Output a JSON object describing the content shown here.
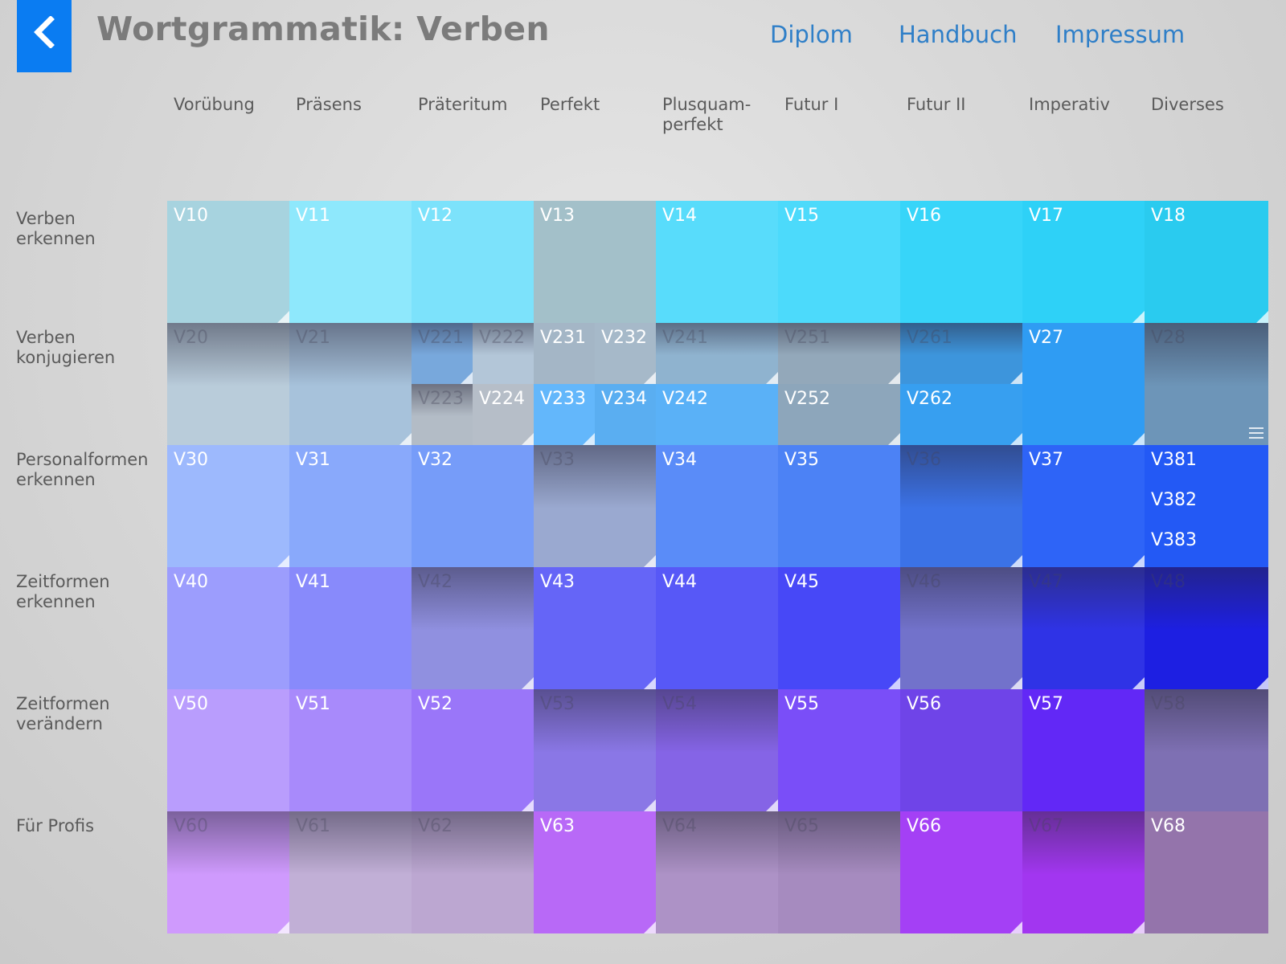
{
  "header": {
    "title": "Wortgrammatik: Verben",
    "back_icon": "chevron-left-icon",
    "nav": [
      "Diplom",
      "Handbuch",
      "Impressum"
    ]
  },
  "columns": [
    "Vorübung",
    "Präsens",
    "Präteritum",
    "Perfekt",
    "Plusquam-\nperfekt",
    "Futur I",
    "Futur II",
    "Imperativ",
    "Diverses"
  ],
  "rows": [
    "Verben\nerkennen",
    "Verben\nkonjugieren",
    "Personalformen\nerkennen",
    "Zeitformen\nerkennen",
    "Zeitformen\nverändern",
    "Für Profis"
  ],
  "tiles": [
    {
      "label": "V10",
      "color": "#a7d3df",
      "state": "active",
      "corner": true
    },
    {
      "label": "V11",
      "color": "#8ee8fc",
      "state": "active",
      "corner": false
    },
    {
      "label": "V12",
      "color": "#7ce2fb",
      "state": "active",
      "corner": false
    },
    {
      "label": "V13",
      "color": "#a3c0c9",
      "state": "active",
      "corner": false
    },
    {
      "label": "V14",
      "color": "#58dcfb",
      "state": "active",
      "corner": false
    },
    {
      "label": "V15",
      "color": "#4cdafb",
      "state": "active",
      "corner": false
    },
    {
      "label": "V16",
      "color": "#37d5f9",
      "state": "active",
      "corner": false
    },
    {
      "label": "V17",
      "color": "#2ed1f7",
      "state": "active",
      "corner": true
    },
    {
      "label": "V18",
      "color": "#2acbef",
      "state": "active",
      "corner": true
    },
    {
      "label": "V20",
      "color": "#b9ccda",
      "state": "dim",
      "corner": false
    },
    {
      "label": "V21",
      "color": "#a7c2db",
      "state": "dim",
      "corner": true
    },
    {
      "split": true,
      "parts": [
        {
          "label": "V221",
          "color": "#78a8dc",
          "state": "dim",
          "corner": true
        },
        {
          "label": "V222",
          "color": "#b3c6d8",
          "state": "dim",
          "corner": false
        },
        {
          "label": "V223",
          "color": "#b3bcc6",
          "state": "dim",
          "corner": false
        },
        {
          "label": "V224",
          "color": "#b6bec8",
          "state": "active",
          "corner": true
        }
      ]
    },
    {
      "split": true,
      "parts": [
        {
          "label": "V231",
          "color": "#a4b6c6",
          "state": "active",
          "corner": false
        },
        {
          "label": "V232",
          "color": "#a6b9c9",
          "state": "active",
          "corner": true
        },
        {
          "label": "V233",
          "color": "#63b7fb",
          "state": "active",
          "corner": true
        },
        {
          "label": "V234",
          "color": "#5aaef1",
          "state": "active",
          "corner": false
        }
      ]
    },
    {
      "vsplit": true,
      "parts": [
        {
          "label": "V241",
          "color": "#8fb3cf",
          "state": "dim",
          "corner": true
        },
        {
          "label": "V242",
          "color": "#5ab1f7",
          "state": "active",
          "corner": false
        }
      ]
    },
    {
      "vsplit": true,
      "parts": [
        {
          "label": "V251",
          "color": "#93a8ba",
          "state": "dim",
          "corner": true
        },
        {
          "label": "V252",
          "color": "#8da6bb",
          "state": "active",
          "corner": true
        }
      ]
    },
    {
      "vsplit": true,
      "parts": [
        {
          "label": "V261",
          "color": "#3d95dc",
          "state": "dim",
          "corner": true
        },
        {
          "label": "V262",
          "color": "#379ff0",
          "state": "active",
          "corner": true
        }
      ]
    },
    {
      "label": "V27",
      "color": "#2f9cf3",
      "state": "active",
      "corner": true
    },
    {
      "label": "V28",
      "color": "#6d95b8",
      "state": "dim",
      "corner": false,
      "menu": true
    },
    {
      "label": "V30",
      "color": "#9db9fd",
      "state": "active",
      "corner": true
    },
    {
      "label": "V31",
      "color": "#89a9fb",
      "state": "active",
      "corner": false
    },
    {
      "label": "V32",
      "color": "#769cf9",
      "state": "active",
      "corner": false
    },
    {
      "label": "V33",
      "color": "#9aa9d0",
      "state": "dim",
      "corner": true
    },
    {
      "label": "V34",
      "color": "#5a8cf8",
      "state": "active",
      "corner": false
    },
    {
      "label": "V35",
      "color": "#4c82f5",
      "state": "active",
      "corner": false
    },
    {
      "label": "V36",
      "color": "#3b72e7",
      "state": "dim",
      "corner": true
    },
    {
      "label": "V37",
      "color": "#2e64f7",
      "state": "active",
      "corner": true
    },
    {
      "multi": true,
      "labels": [
        "V381",
        "V382",
        "V383"
      ],
      "color": "#2359f5",
      "state": "active"
    },
    {
      "label": "V40",
      "color": "#9c9dfd",
      "state": "active",
      "corner": false
    },
    {
      "label": "V41",
      "color": "#888afb",
      "state": "active",
      "corner": false
    },
    {
      "label": "V42",
      "color": "#9090e0",
      "state": "dim",
      "corner": true
    },
    {
      "label": "V43",
      "color": "#6565f7",
      "state": "active",
      "corner": true
    },
    {
      "label": "V44",
      "color": "#5758f7",
      "state": "active",
      "corner": false
    },
    {
      "label": "V45",
      "color": "#4748f7",
      "state": "active",
      "corner": true
    },
    {
      "label": "V46",
      "color": "#7272cb",
      "state": "dim",
      "corner": true
    },
    {
      "label": "V47",
      "color": "#2f33e6",
      "state": "dim",
      "corner": true
    },
    {
      "label": "V48",
      "color": "#1d1fe2",
      "state": "dim",
      "corner": true
    },
    {
      "label": "V50",
      "color": "#b99dfd",
      "state": "active",
      "corner": false
    },
    {
      "label": "V51",
      "color": "#a88afb",
      "state": "active",
      "corner": false
    },
    {
      "label": "V52",
      "color": "#9a76f9",
      "state": "active",
      "corner": true
    },
    {
      "label": "V53",
      "color": "#8a77e6",
      "state": "dim",
      "corner": true
    },
    {
      "label": "V54",
      "color": "#8564e6",
      "state": "dim",
      "corner": true
    },
    {
      "label": "V55",
      "color": "#7a4ef8",
      "state": "active",
      "corner": false
    },
    {
      "label": "V56",
      "color": "#6f44e8",
      "state": "active",
      "corner": false
    },
    {
      "label": "V57",
      "color": "#6228f6",
      "state": "active",
      "corner": false
    },
    {
      "label": "V58",
      "color": "#7e70b3",
      "state": "dim",
      "corner": false
    },
    {
      "label": "V60",
      "color": "#cf9afd",
      "state": "dim",
      "corner": true
    },
    {
      "label": "V61",
      "color": "#c1afd6",
      "state": "dim",
      "corner": false
    },
    {
      "label": "V62",
      "color": "#bca7d1",
      "state": "dim",
      "corner": false
    },
    {
      "label": "V63",
      "color": "#b869f7",
      "state": "active",
      "corner": true
    },
    {
      "label": "V64",
      "color": "#ad92c6",
      "state": "dim",
      "corner": false
    },
    {
      "label": "V65",
      "color": "#a68bbf",
      "state": "dim",
      "corner": false
    },
    {
      "label": "V66",
      "color": "#a440f5",
      "state": "active",
      "corner": true
    },
    {
      "label": "V67",
      "color": "#a236f0",
      "state": "dim",
      "corner": true
    },
    {
      "label": "V68",
      "color": "#9474ab",
      "state": "active",
      "corner": false
    }
  ]
}
